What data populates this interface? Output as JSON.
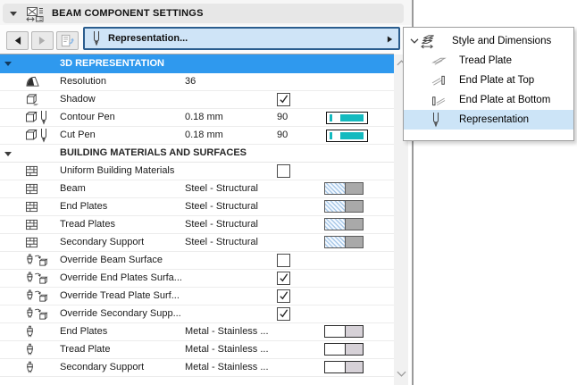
{
  "window": {
    "title": "BEAM COMPONENT SETTINGS"
  },
  "nav": {
    "dropdown_label": "Representation..."
  },
  "rows": [
    {
      "kind": "section-blue",
      "label": "3D REPRESENTATION"
    },
    {
      "kind": "row",
      "icon": "resolution",
      "label": "Resolution",
      "value": "36"
    },
    {
      "kind": "row",
      "icon": "shadow",
      "label": "Shadow",
      "checkbox": true,
      "checked": true
    },
    {
      "kind": "row",
      "icon": "cube-pen",
      "label": "Contour Pen",
      "value": "0.18 mm",
      "value2": "90",
      "swatch": "pen"
    },
    {
      "kind": "row",
      "icon": "cube-pen",
      "label": "Cut Pen",
      "value": "0.18 mm",
      "value2": "90",
      "swatch": "pen"
    },
    {
      "kind": "section-plain",
      "label": "BUILDING MATERIALS AND SURFACES"
    },
    {
      "kind": "row",
      "icon": "brick",
      "label": "Uniform Building Materials",
      "checkbox": true,
      "checked": false
    },
    {
      "kind": "row",
      "icon": "brick",
      "label": "Beam",
      "value": "Steel - Structural",
      "swatch": "material"
    },
    {
      "kind": "row",
      "icon": "brick",
      "label": "End Plates",
      "value": "Steel - Structural",
      "swatch": "material"
    },
    {
      "kind": "row",
      "icon": "brick",
      "label": "Tread Plates",
      "value": "Steel - Structural",
      "swatch": "material"
    },
    {
      "kind": "row",
      "icon": "brick",
      "label": "Secondary Support",
      "value": "Steel - Structural",
      "swatch": "material"
    },
    {
      "kind": "row",
      "icon": "override",
      "label": "Override Beam Surface",
      "checkbox": true,
      "checked": false
    },
    {
      "kind": "row",
      "icon": "override",
      "label": "Override End Plates Surfa...",
      "checkbox": true,
      "checked": true
    },
    {
      "kind": "row",
      "icon": "override",
      "label": "Override Tread Plate Surf...",
      "checkbox": true,
      "checked": true
    },
    {
      "kind": "row",
      "icon": "override",
      "label": "Override Secondary Supp...",
      "checkbox": true,
      "checked": true
    },
    {
      "kind": "row",
      "icon": "brush",
      "label": "End Plates",
      "value": "Metal - Stainless ...",
      "swatch": "surface"
    },
    {
      "kind": "row",
      "icon": "brush",
      "label": "Tread Plate",
      "value": "Metal - Stainless ...",
      "swatch": "surface"
    },
    {
      "kind": "row",
      "icon": "brush",
      "label": "Secondary Support",
      "value": "Metal - Stainless ...",
      "swatch": "surface"
    }
  ],
  "menu": {
    "items": [
      {
        "icon": "stairs-dim",
        "label": "Style and Dimensions",
        "level": 0,
        "expanded": true,
        "selected": false
      },
      {
        "icon": "tread-plate",
        "label": "Tread Plate",
        "level": 1,
        "selected": false
      },
      {
        "icon": "end-plate-top",
        "label": "End Plate at Top",
        "level": 1,
        "selected": false
      },
      {
        "icon": "end-plate-bottom",
        "label": "End Plate at Bottom",
        "level": 1,
        "selected": false
      },
      {
        "icon": "pen",
        "label": "Representation",
        "level": 1,
        "selected": true
      }
    ]
  },
  "colors": {
    "section_blue": "#2f99ee",
    "pen_teal": "#14babf",
    "selection_highlight": "#cce4f7",
    "dropdown_fill": "#cfe4f7",
    "dropdown_border": "#2b5d8e"
  }
}
